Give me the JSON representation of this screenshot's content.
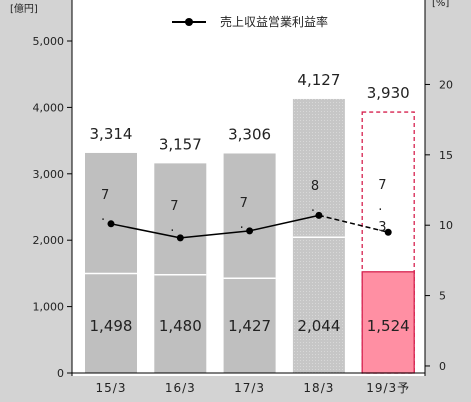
{
  "chart_data": {
    "type": "bar",
    "categories": [
      "15/3",
      "16/3",
      "17/3",
      "18/3",
      "19/3予"
    ],
    "forecast_index": 4,
    "series": [
      {
        "values": [
          1498,
          1480,
          1427,
          2044,
          1524
        ]
      },
      {
        "values": [
          3314,
          3157,
          3306,
          4127,
          3930
        ]
      },
      {
        "name": "売上収益営業利益率",
        "type": "line",
        "axis": "right",
        "values": [
          10.1,
          9.1,
          9.6,
          10.7,
          9.5
        ]
      }
    ],
    "totals": [
      3314,
      3157,
      3306,
      4127,
      3930
    ],
    "total_labels": [
      "3,314",
      "3,157",
      "3,306",
      "4,127",
      "3,930"
    ],
    "segment_labels": [
      "1,498",
      "1,480",
      "1,427",
      "2,044",
      "1,524"
    ],
    "rate_labels": [
      [
        "7",
        "."
      ],
      [
        "7",
        "."
      ],
      [
        "7",
        "."
      ],
      [
        "8",
        "."
      ],
      [
        "7",
        ".",
        "3"
      ]
    ],
    "y_left": {
      "unit": "[億円]",
      "ylim": [
        0,
        5000
      ],
      "ticks": [
        0,
        1000,
        2000,
        3000,
        4000,
        5000
      ],
      "tick_labels": [
        "0",
        "1,000",
        "2,000",
        "3,000",
        "4,000",
        "5,000"
      ]
    },
    "y_right": {
      "unit": "[%]",
      "ylim": [
        -0.5,
        26
      ],
      "ticks": [
        0,
        5,
        10,
        15,
        20
      ],
      "tick_labels": [
        "0",
        "5",
        "10",
        "15",
        "20"
      ]
    },
    "legend": {
      "label": "売上収益営業利益率",
      "placement": "top-center"
    },
    "colors": {
      "background": "#d3d3d3",
      "plot": "#ffffff",
      "bar": "#bfbfbf",
      "bar_hatched": "#c8c8c8",
      "forecast_fill": "#ff8fa3",
      "forecast_border": "#d6224f",
      "forecast_text": "#e0144c",
      "line": "#000000"
    }
  }
}
